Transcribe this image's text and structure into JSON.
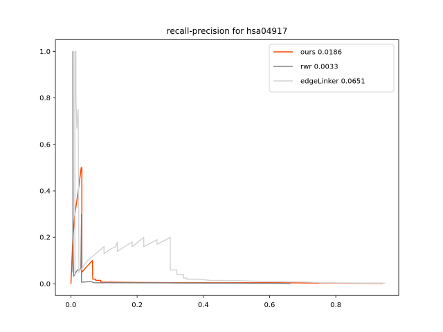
{
  "chart_data": {
    "type": "line",
    "title": "recall-precision for hsa04917",
    "xlabel": "",
    "ylabel": "",
    "xlim": [
      -0.047,
      0.99
    ],
    "ylim": [
      -0.05,
      1.05
    ],
    "xticks": [
      0.0,
      0.2,
      0.4,
      0.6,
      0.8
    ],
    "yticks": [
      0.0,
      0.2,
      0.4,
      0.6,
      0.8,
      1.0
    ],
    "xtick_labels": [
      "0.0",
      "0.2",
      "0.4",
      "0.6",
      "0.8"
    ],
    "ytick_labels": [
      "0.0",
      "0.2",
      "0.4",
      "0.6",
      "0.8",
      "1.0"
    ],
    "grid": false,
    "legend_position": "top-right",
    "series": [
      {
        "name": "ours 0.0186",
        "color": "#ff4500",
        "x": [
          0.0,
          0.006,
          0.012,
          0.018,
          0.024,
          0.031,
          0.033,
          0.033,
          0.045,
          0.065,
          0.066,
          0.075,
          0.075,
          0.09,
          0.09,
          0.2,
          0.3,
          0.45,
          0.55,
          0.6,
          0.7,
          0.8,
          0.942
        ],
        "y": [
          0.0,
          0.2,
          0.3,
          0.36,
          0.42,
          0.5,
          0.5,
          0.05,
          0.07,
          0.1,
          0.02,
          0.02,
          0.015,
          0.015,
          0.008,
          0.006,
          0.005,
          0.005,
          0.005,
          0.005,
          0.004,
          0.003,
          0.002
        ]
      },
      {
        "name": "rwr 0.0033",
        "color": "#808080",
        "x": [
          0.006,
          0.006,
          0.0065,
          0.008,
          0.012,
          0.015,
          0.02,
          0.03,
          0.032,
          0.032,
          0.06,
          0.07,
          0.3,
          0.5,
          0.663
        ],
        "y": [
          0.05,
          1.0,
          0.15,
          0.033,
          0.04,
          0.05,
          0.06,
          0.062,
          0.3,
          0.007,
          0.01,
          0.005,
          0.004,
          0.003,
          0.002
        ]
      },
      {
        "name": "edgeLinker 0.0651",
        "color": "#d3d3d3",
        "x": [
          0.012,
          0.012,
          0.015,
          0.015,
          0.018,
          0.02,
          0.022,
          0.024,
          0.024,
          0.027,
          0.03,
          0.05,
          0.1,
          0.1,
          0.12,
          0.135,
          0.14,
          0.14,
          0.185,
          0.185,
          0.22,
          0.22,
          0.26,
          0.26,
          0.3,
          0.3,
          0.32,
          0.32,
          0.34,
          0.34,
          0.35,
          0.35,
          0.38,
          0.4,
          0.42,
          0.5,
          0.6,
          0.7,
          0.75,
          0.75,
          0.8,
          0.95
        ],
        "y": [
          0.04,
          1.0,
          1.0,
          0.8,
          0.67,
          0.72,
          0.75,
          0.06,
          0.05,
          0.06,
          0.06,
          0.1,
          0.16,
          0.13,
          0.15,
          0.16,
          0.18,
          0.14,
          0.18,
          0.16,
          0.2,
          0.16,
          0.19,
          0.17,
          0.2,
          0.06,
          0.06,
          0.04,
          0.04,
          0.025,
          0.025,
          0.02,
          0.02,
          0.018,
          0.015,
          0.014,
          0.01,
          0.008,
          0.006,
          0.005,
          0.004,
          0.003
        ]
      }
    ]
  }
}
